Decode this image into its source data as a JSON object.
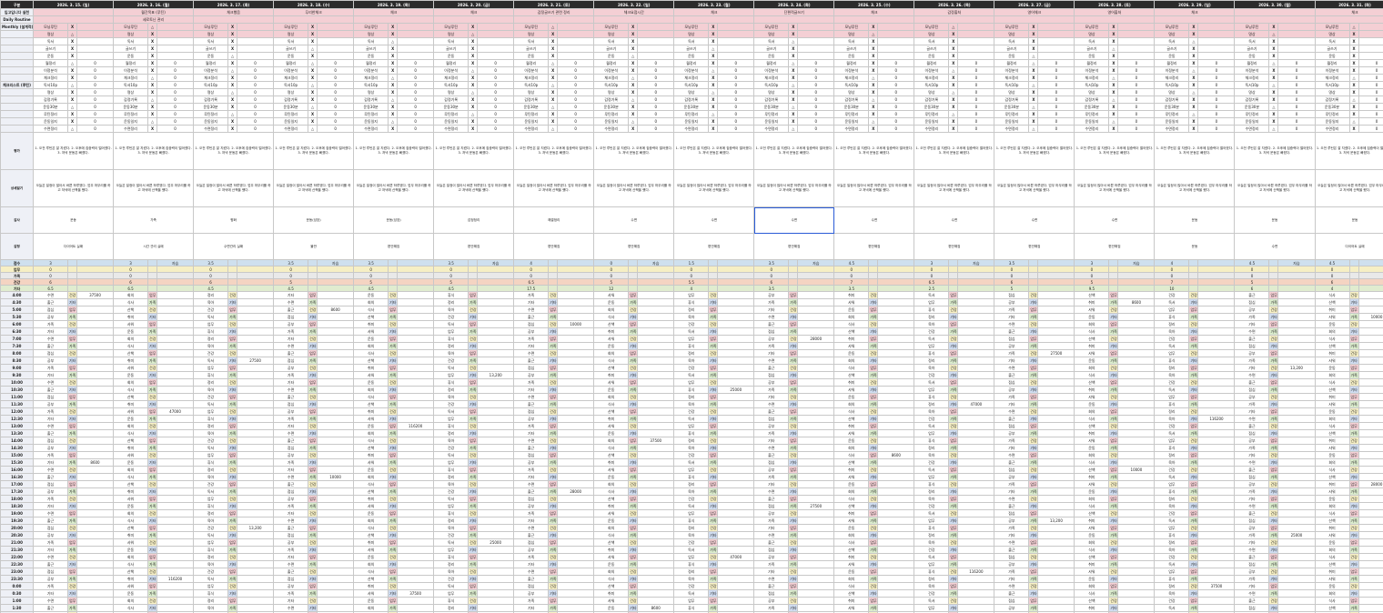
{
  "dates": [
    {
      "label": "2026. 3. 16. (월)"
    },
    {
      "label": "2026. 3. 17. (화)"
    },
    {
      "label": "2026. 3. 18. (수)"
    },
    {
      "label": "2026. 3. 19. (목)"
    },
    {
      "label": "2026. 3. 20. (금)"
    },
    {
      "label": "2026. 3. 21. (토)"
    },
    {
      "label": "2026. 3. 22. (일)"
    },
    {
      "label": "2026. 3. 23. (월)"
    },
    {
      "label": "2026. 3. 24. (화)"
    },
    {
      "label": "2026. 3. 25. (수)"
    },
    {
      "label": "2026. 3. 26. (목)"
    },
    {
      "label": "2026. 3. 27. (금)"
    },
    {
      "label": "2026. 3. 28. (토)"
    },
    {
      "label": "2026. 3. 29. (일)"
    },
    {
      "label": "2026. 3. 30. (월)"
    },
    {
      "label": "2026. 3. 31. (화)"
    }
  ],
  "first_date": "2026. 3. 15. (일)",
  "corner": "구분",
  "labels": {
    "monthly": "Monthly\n(설계적)",
    "checklist": "체크리스트\n(루틴)",
    "reflection": "평가",
    "details": "상세일기",
    "gratitude": "감사",
    "feelings": "감정",
    "score": "점수",
    "work": "업무",
    "study": "가족",
    "health": "건강",
    "other": "기타"
  },
  "top_rows": [
    {
      "c0": "입고입니다 실천",
      "cells": [
        "월간목표 (루틴)",
        "체크했음",
        "무리한체크",
        "체크",
        "체크",
        "감정글쓰기 관련 정리",
        "체크요점시간",
        "체크",
        "단편적글쓰기",
        "체크",
        "감정출처",
        "영어체크",
        "영어출처",
        "체크",
        "",
        "체크"
      ]
    },
    {
      "c0": "Daily Routine",
      "cells": [
        "세로토닌 관리",
        "",
        "",
        "",
        "",
        "",
        "",
        "",
        "",
        "",
        "",
        "",
        "",
        "",
        "",
        ""
      ]
    }
  ],
  "monthly_items": [
    "모닝루틴",
    "명상",
    "독서",
    "글쓰기",
    "운동"
  ],
  "checklist_items": [
    "독서",
    "명상",
    "일기",
    "영어",
    "스트레칭",
    "운동",
    "물",
    "영양제",
    "수면",
    "정리"
  ],
  "routine": [
    "월정리",
    "이정분석",
    "체크정리",
    "독서10p",
    "명상",
    "감정기록",
    "운동30분",
    "루틴정리",
    "운동일지",
    "수면정리"
  ],
  "reflection_text": "1. 오전 루틴은 잘 지켰다. 2. 오후에 집중력이 떨어졌다. 3. 저녁 운동은 빠졌다.",
  "details_text": "오늘은 일정이 많아서 바쁜 하루였다. 업무 마무리를 하고 저녁에 산책을 했다.",
  "gratitude_items": [
    "운동",
    "가족",
    "평화",
    "운동(성장)",
    "운동(성장)",
    "감정정리",
    "해결정리",
    "수면",
    "수면",
    "수면",
    "수면",
    "수면",
    "수면",
    "수면",
    "운동",
    "운동"
  ],
  "feelings_items": [
    "다이어트 실패",
    "시간 관리 실패",
    "수면관리 실패",
    "불만",
    "편안해짐",
    "편안해짐",
    "편안해짐",
    "편안해짐",
    "편안해짐",
    "편안해짐",
    "편안해짐",
    "편안해짐",
    "편안해짐",
    "편안해짐",
    "운동",
    "수면"
  ],
  "score_rows": [
    {
      "key": "점수",
      "vals": [
        "3",
        "3.5",
        "3.5",
        "3.5",
        "3.5",
        "4",
        "0",
        "1.5",
        "3.5",
        "4.5",
        "3",
        "3.5",
        "3",
        "4",
        "4.5",
        "4.5"
      ],
      "total": "37500"
    },
    {
      "key": "업무",
      "vals": [
        "0",
        "0",
        "0",
        "0",
        "0",
        "0",
        "0",
        "0",
        "0",
        "0",
        "0",
        "0",
        "0",
        "0",
        "0",
        "0"
      ],
      "total": ""
    },
    {
      "key": "가족",
      "vals": [
        "0",
        "0",
        "0",
        "0",
        "0",
        "0",
        "0",
        "0",
        "0",
        "0",
        "0",
        "0",
        "0",
        "0",
        "0",
        "0"
      ],
      "total": ""
    },
    {
      "key": "건강",
      "vals": [
        "6",
        "6",
        "5",
        "5",
        "5",
        "6.5",
        "5",
        "5.5",
        "6",
        "7",
        "6.5",
        "6",
        "5",
        "7",
        "5",
        "6"
      ],
      "total": ""
    },
    {
      "key": "기타",
      "vals": [
        "6.5",
        "4.5",
        "4.5",
        "4.5",
        "4.5",
        "17.5",
        "12",
        "4",
        "3.5",
        "3.5",
        "2.5",
        "5",
        "9.5",
        "10",
        "6",
        "4"
      ],
      "total": ""
    }
  ],
  "times": [
    "4:00",
    "4:30",
    "5:00",
    "5:30",
    "6:00",
    "6:30",
    "7:00",
    "7:30",
    "8:00",
    "8:30",
    "9:00",
    "9:30",
    "10:00",
    "10:30",
    "11:00",
    "11:30",
    "12:00",
    "12:30",
    "13:00",
    "13:30",
    "14:00",
    "14:30",
    "15:00",
    "15:30",
    "16:00",
    "16:30",
    "17:00",
    "17:30",
    "18:00",
    "18:30",
    "19:00",
    "19:30",
    "20:00",
    "20:30",
    "21:00",
    "21:30",
    "22:00",
    "22:30",
    "23:00",
    "23:30",
    "0:00",
    "0:30",
    "1:00",
    "1:30",
    "2:00",
    "2:30",
    "3:00",
    "3:30"
  ],
  "activities": [
    "수면",
    "독서",
    "운동",
    "출근",
    "업무",
    "회의",
    "점심",
    "휴식",
    "식사",
    "공부",
    "정리",
    "산책",
    "가족",
    "육아",
    "취미",
    "기타",
    "건강",
    "샤워"
  ],
  "tags": [
    "건강",
    "기타",
    "업무",
    "가족"
  ],
  "memo_values": [
    "37500",
    "10000",
    "27500",
    "25000",
    "116200",
    "8600",
    "28000",
    "13,200",
    "47000"
  ]
}
